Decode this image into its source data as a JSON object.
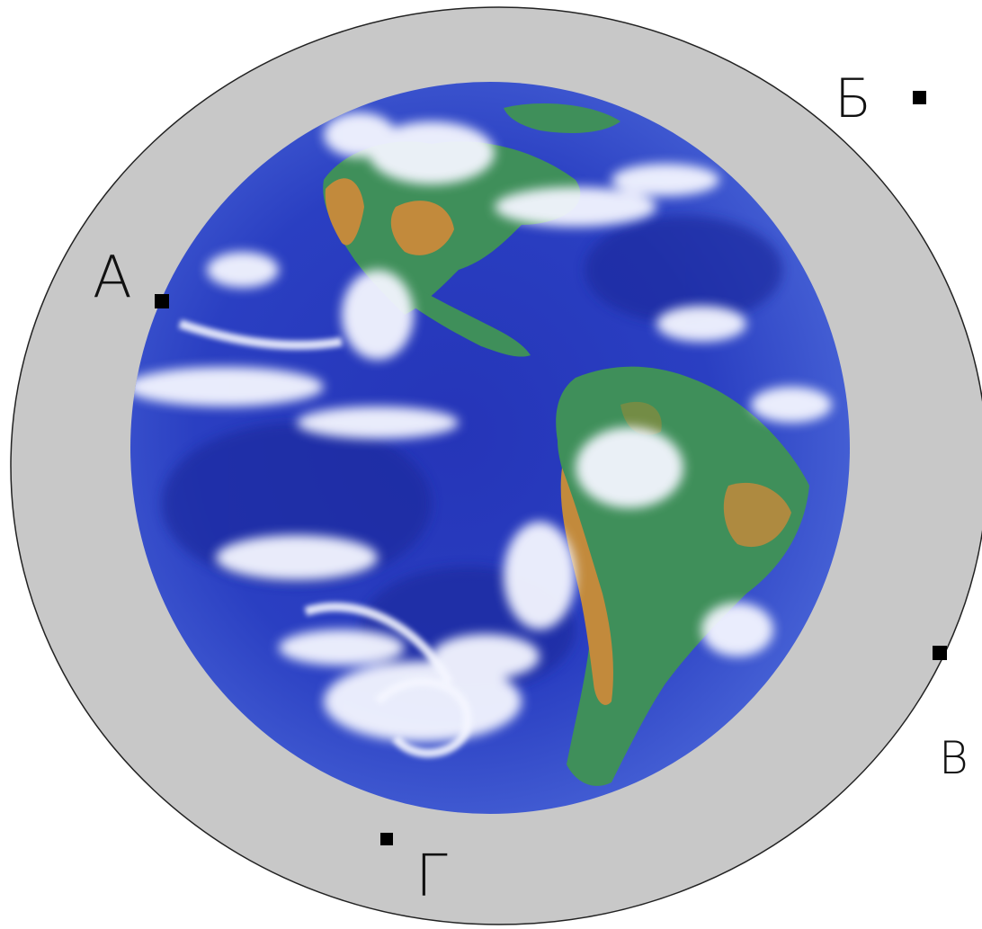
{
  "colors": {
    "atmosphere": "#c8c8c8",
    "outline": "#222222",
    "ocean_deep": "#1f2fa6",
    "ocean_mid": "#3a52cf",
    "ocean_light": "#7f96ea",
    "land_green": "#3f8f5a",
    "land_brown": "#c28a3c",
    "cloud": "#f4f6ff",
    "marker": "#000000"
  },
  "icons": {
    "earth": "earth-globe-icon",
    "point": "square-marker-icon"
  },
  "points": [
    {
      "id": "a",
      "label": "А"
    },
    {
      "id": "b",
      "label": "Б"
    },
    {
      "id": "v",
      "label": "В"
    },
    {
      "id": "g",
      "label": "Г"
    }
  ]
}
